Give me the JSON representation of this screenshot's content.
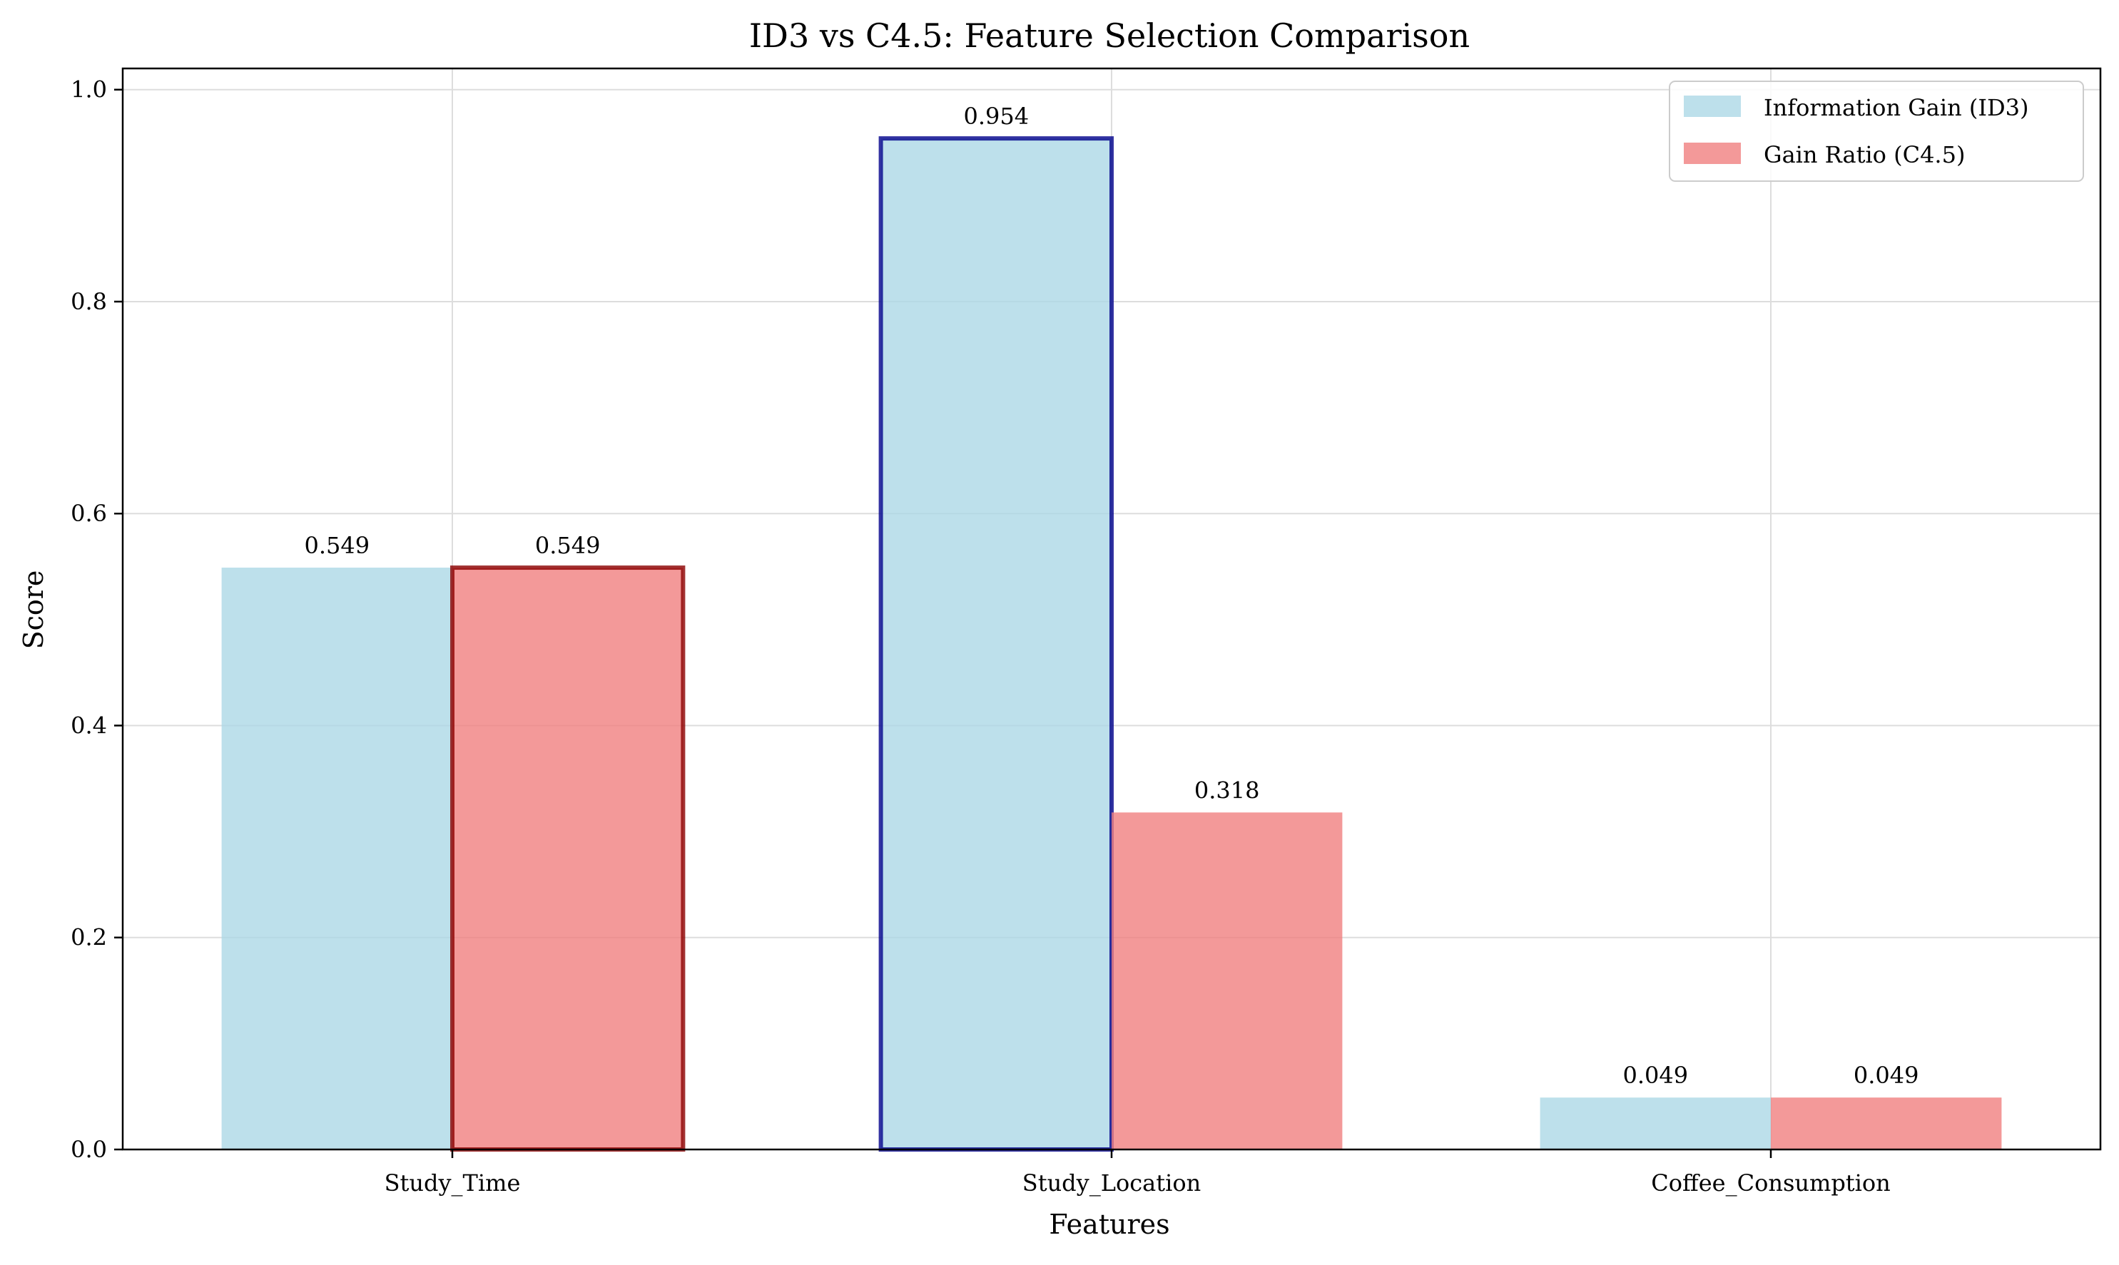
{
  "chart_data": {
    "type": "bar",
    "title": "ID3 vs C4.5: Feature Selection Comparison",
    "xlabel": "Features",
    "ylabel": "Score",
    "categories": [
      "Study_Time",
      "Study_Location",
      "Coffee_Consumption"
    ],
    "ylim": [
      0,
      1.0
    ],
    "yticks": [
      0.0,
      0.2,
      0.4,
      0.6,
      0.8,
      1.0
    ],
    "ytick_labels": [
      "0.0",
      "0.2",
      "0.4",
      "0.6",
      "0.8",
      "1.0"
    ],
    "grid": true,
    "legend_position": "top-right",
    "series": [
      {
        "name": "Information Gain (ID3)",
        "color": "#add8e6",
        "highlight_color": "#00008b",
        "values": [
          0.549,
          0.954,
          0.049
        ],
        "value_labels": [
          "0.549",
          "0.954",
          "0.049"
        ],
        "highlighted": [
          false,
          true,
          false
        ]
      },
      {
        "name": "Gain Ratio (C4.5)",
        "color": "#f08080",
        "highlight_color": "#8b0000",
        "values": [
          0.549,
          0.318,
          0.049
        ],
        "value_labels": [
          "0.549",
          "0.318",
          "0.049"
        ],
        "highlighted": [
          true,
          false,
          false
        ]
      }
    ]
  }
}
